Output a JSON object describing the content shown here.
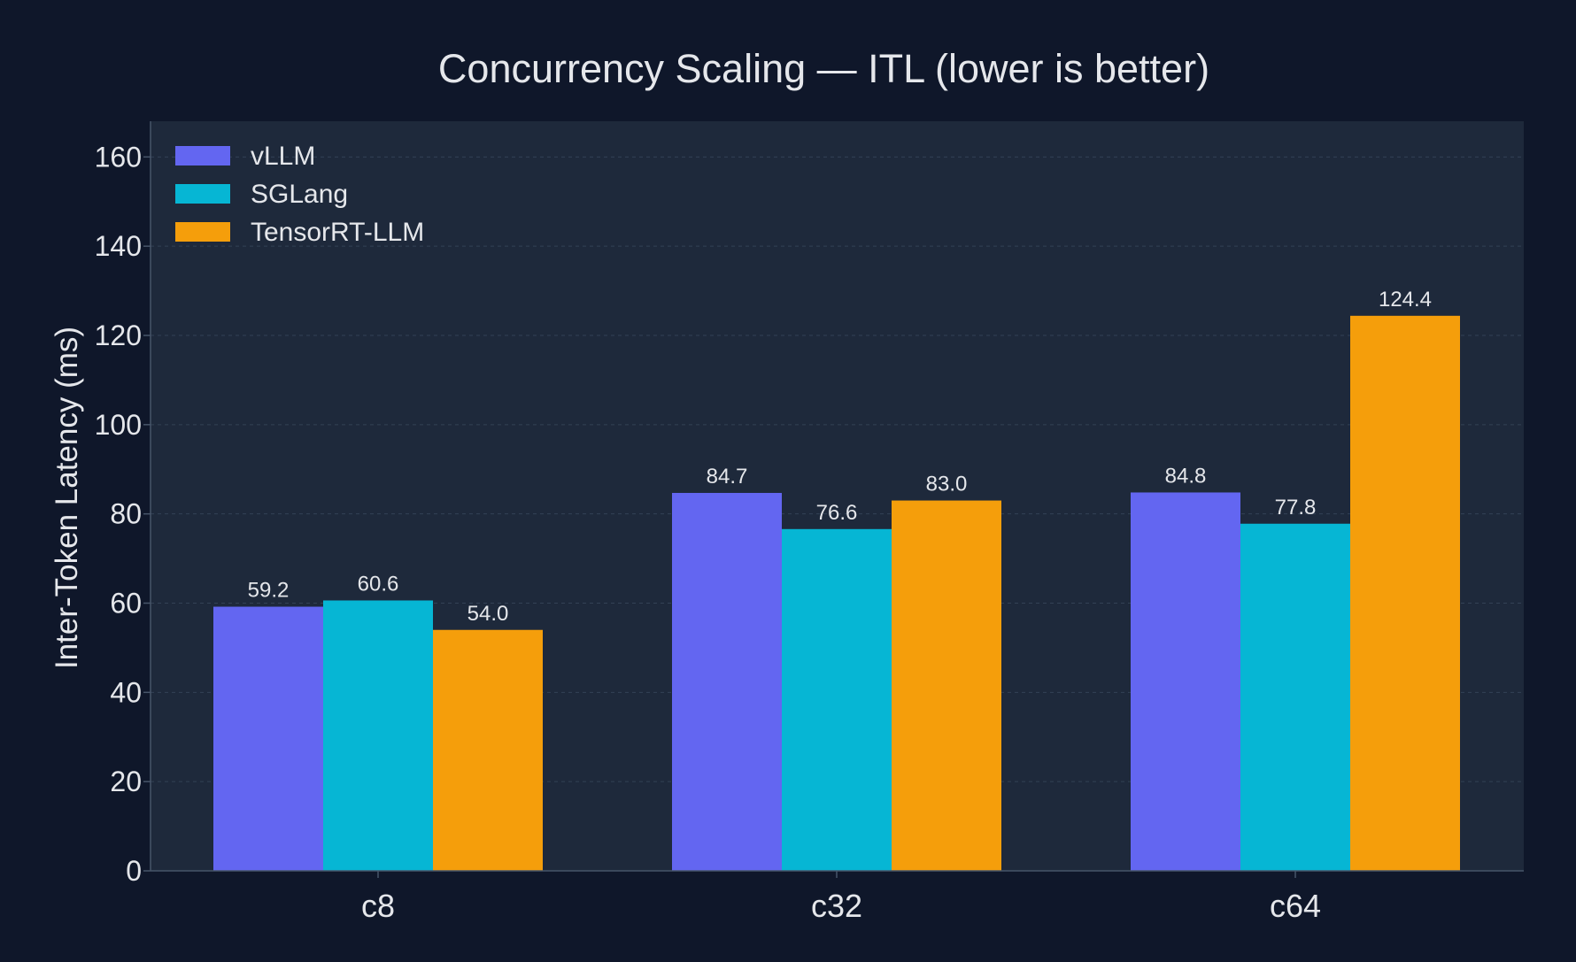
{
  "chart_data": {
    "type": "bar",
    "title": "Concurrency Scaling — ITL (lower is better)",
    "xlabel": "",
    "ylabel": "Inter-Token Latency (ms)",
    "categories": [
      "c8",
      "c32",
      "c64"
    ],
    "series": [
      {
        "name": "vLLM",
        "color": "#6366f1",
        "values": [
          59.2,
          84.7,
          84.8
        ]
      },
      {
        "name": "SGLang",
        "color": "#06b6d4",
        "values": [
          60.6,
          76.6,
          77.8
        ]
      },
      {
        "name": "TensorRT-LLM",
        "color": "#f59e0b",
        "values": [
          54.0,
          83.0,
          124.4
        ]
      }
    ],
    "data_labels": [
      [
        "59.2",
        "84.7",
        "84.8"
      ],
      [
        "60.6",
        "76.6",
        "77.8"
      ],
      [
        "54.0",
        "83.0",
        "124.4"
      ]
    ],
    "ylim": [
      0,
      168
    ],
    "yticks": [
      0,
      20,
      40,
      60,
      80,
      100,
      120,
      140,
      160
    ],
    "ytick_labels": [
      "0",
      "20",
      "40",
      "60",
      "80",
      "100",
      "120",
      "140",
      "160"
    ],
    "grid": true,
    "legend_position": "top-left"
  },
  "colors": {
    "page_background": "#0f172a",
    "plot_background": "#1e293b",
    "text": "#e5e7eb",
    "grid": "#334155",
    "axis": "#475569"
  }
}
